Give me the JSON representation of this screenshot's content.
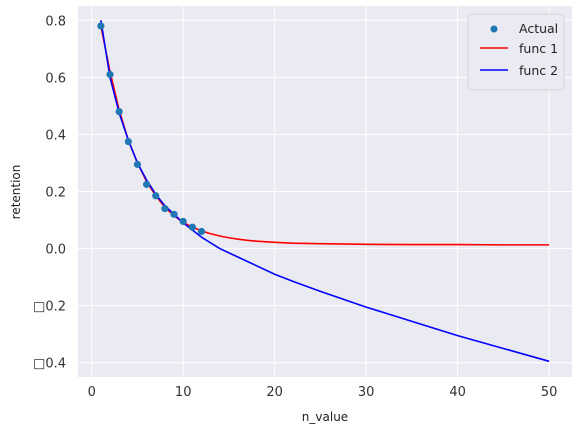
{
  "chart_data": {
    "type": "line",
    "title": "",
    "xlabel": "n_value",
    "ylabel": "retention",
    "xlim": [
      -1.5,
      52.5
    ],
    "ylim": [
      -0.45,
      0.85
    ],
    "x_ticks": [
      0,
      10,
      20,
      30,
      40,
      50
    ],
    "x_tick_labels": [
      "0",
      "10",
      "20",
      "30",
      "40",
      "50"
    ],
    "y_ticks": [
      0.8,
      0.6,
      0.4,
      0.2,
      0.0,
      -0.2,
      -0.4
    ],
    "y_tick_labels": [
      "0.8",
      "0.6",
      "0.4",
      "0.2",
      "0.0",
      "□0.2",
      "□0.4"
    ],
    "grid": true,
    "legend_position": "top-right",
    "scatter": {
      "name": "Actual",
      "color": "#1f77b4",
      "x": [
        1,
        2,
        3,
        4,
        5,
        6,
        7,
        8,
        9,
        10,
        11,
        12
      ],
      "y": [
        0.78,
        0.61,
        0.48,
        0.375,
        0.295,
        0.225,
        0.185,
        0.14,
        0.12,
        0.095,
        0.075,
        0.06
      ]
    },
    "series": [
      {
        "name": "func 1",
        "color": "#ff0000",
        "x": [
          1,
          2,
          3,
          4,
          5,
          6,
          7,
          8,
          9,
          10,
          11,
          12,
          13,
          14,
          15,
          16,
          17,
          18,
          20,
          22,
          25,
          30,
          35,
          40,
          45,
          50
        ],
        "y": [
          0.78,
          0.62,
          0.485,
          0.38,
          0.3,
          0.235,
          0.185,
          0.145,
          0.115,
          0.092,
          0.075,
          0.062,
          0.052,
          0.044,
          0.038,
          0.033,
          0.029,
          0.026,
          0.022,
          0.019,
          0.017,
          0.015,
          0.014,
          0.014,
          0.013,
          0.013
        ]
      },
      {
        "name": "func 2",
        "color": "#0000ff",
        "x": [
          1,
          2,
          3,
          4,
          5,
          6,
          7,
          8,
          9,
          10,
          11,
          12,
          13,
          14,
          15,
          16,
          18,
          20,
          22,
          25,
          30,
          35,
          40,
          45,
          50
        ],
        "y": [
          0.8,
          0.6,
          0.475,
          0.38,
          0.3,
          0.24,
          0.19,
          0.15,
          0.12,
          0.09,
          0.065,
          0.04,
          0.02,
          0.0,
          -0.015,
          -0.03,
          -0.06,
          -0.09,
          -0.115,
          -0.15,
          -0.205,
          -0.255,
          -0.305,
          -0.35,
          -0.395
        ]
      }
    ]
  }
}
